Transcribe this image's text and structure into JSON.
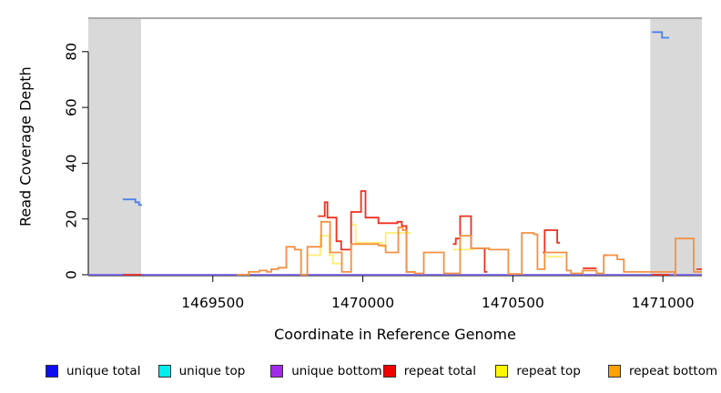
{
  "figure": {
    "x_title": "Coordinate in Reference Genome",
    "y_title": "Read Coverage Depth"
  },
  "chart_data": {
    "type": "line",
    "subtype": "step-coverage",
    "title": "",
    "xlabel": "Coordinate in Reference Genome",
    "ylabel": "Read Coverage Depth",
    "xlim": [
      1469085,
      1471130
    ],
    "ylim": [
      0,
      92
    ],
    "x_ticks": [
      1469500,
      1470000,
      1470500,
      1471000
    ],
    "y_ticks": [
      0,
      20,
      40,
      60,
      80
    ],
    "grid": false,
    "legend_position": "bottom",
    "colors": {
      "shade": "#d9d9d9",
      "axis": "#000000",
      "top_line": "#aaaaaa",
      "background": "#ffffff"
    },
    "shaded_regions": [
      {
        "x1": 1469085,
        "x2": 1469261
      },
      {
        "x1": 1470958,
        "x2": 1471130
      }
    ],
    "top_boundary_value": 92,
    "series": [
      {
        "name": "unique total",
        "legend_color": "#0d0df0",
        "line_color": "#4a80ee",
        "points": [
          [
            1469200,
            27
          ],
          [
            1469242,
            26
          ],
          [
            1469254,
            25
          ],
          [
            1469264,
            null
          ],
          [
            1470964,
            87
          ],
          [
            1470997,
            85
          ],
          [
            1471021,
            null
          ]
        ]
      },
      {
        "name": "unique top",
        "legend_color": "#00eded",
        "line_color": "#00eded",
        "points": []
      },
      {
        "name": "unique bottom",
        "legend_color": "#a12ce8",
        "line_color": "#7b68ee",
        "points": [
          [
            1469085,
            0
          ],
          [
            1471130,
            0
          ]
        ]
      },
      {
        "name": "repeat total",
        "legend_color": "#ee0000",
        "line_color": "#ef2f21",
        "points": [
          [
            1469200,
            0
          ],
          [
            1469264,
            null
          ],
          [
            1469850,
            21
          ],
          [
            1469873,
            26
          ],
          [
            1469882,
            20.5
          ],
          [
            1469912,
            12
          ],
          [
            1469928,
            9
          ],
          [
            1469961,
            22.5
          ],
          [
            1469994,
            30
          ],
          [
            1470009,
            20.5
          ],
          [
            1470052,
            18.5
          ],
          [
            1470115,
            19
          ],
          [
            1470130,
            17.5
          ],
          [
            1470145,
            1
          ],
          [
            1470170,
            null
          ],
          [
            1470300,
            11
          ],
          [
            1470310,
            13
          ],
          [
            1470324,
            21
          ],
          [
            1470361,
            9.5
          ],
          [
            1470406,
            1
          ],
          [
            1470415,
            null
          ],
          [
            1470600,
            8
          ],
          [
            1470606,
            16
          ],
          [
            1470648,
            11.5
          ],
          [
            1470657,
            null
          ],
          [
            1470733,
            2.3
          ],
          [
            1470779,
            null
          ],
          [
            1470803,
            7
          ],
          [
            1470815,
            null
          ],
          [
            1470964,
            0
          ],
          [
            1471021,
            null
          ],
          [
            1471112,
            2
          ],
          [
            1471130,
            2
          ]
        ]
      },
      {
        "name": "repeat top",
        "legend_color": "#fff700",
        "line_color": "#ffee77",
        "points": [
          [
            1469815,
            7
          ],
          [
            1469858,
            14
          ],
          [
            1469888,
            7
          ],
          [
            1469900,
            4
          ],
          [
            1469933,
            null
          ],
          [
            1469964,
            18
          ],
          [
            1469976,
            11.5
          ],
          [
            1470064,
            10
          ],
          [
            1470076,
            15
          ],
          [
            1470160,
            null
          ],
          [
            1470300,
            9
          ],
          [
            1470370,
            null
          ],
          [
            1470612,
            6.5
          ],
          [
            1470667,
            null
          ],
          [
            1470727,
            1.5
          ],
          [
            1470752,
            null
          ]
        ]
      },
      {
        "name": "repeat bottom",
        "legend_color": "#ffa200",
        "line_color": "#f49041",
        "points": [
          [
            1469580,
            0
          ],
          [
            1469620,
            1
          ],
          [
            1469655,
            1.5
          ],
          [
            1469680,
            1
          ],
          [
            1469695,
            2
          ],
          [
            1469718,
            2.5
          ],
          [
            1469745,
            10
          ],
          [
            1469773,
            9
          ],
          [
            1469794,
            0
          ],
          [
            1469815,
            10
          ],
          [
            1469861,
            19
          ],
          [
            1469891,
            8
          ],
          [
            1469930,
            1
          ],
          [
            1469961,
            11
          ],
          [
            1470052,
            10.5
          ],
          [
            1470076,
            8
          ],
          [
            1470118,
            17
          ],
          [
            1470133,
            16
          ],
          [
            1470145,
            1
          ],
          [
            1470173,
            0.5
          ],
          [
            1470203,
            8
          ],
          [
            1470270,
            0.5
          ],
          [
            1470324,
            14
          ],
          [
            1470361,
            9.5
          ],
          [
            1470421,
            9
          ],
          [
            1470485,
            0.3
          ],
          [
            1470530,
            15
          ],
          [
            1470570,
            14.5
          ],
          [
            1470582,
            2
          ],
          [
            1470606,
            8
          ],
          [
            1470648,
            8
          ],
          [
            1470679,
            1.5
          ],
          [
            1470694,
            0.5
          ],
          [
            1470733,
            1.5
          ],
          [
            1470779,
            0.5
          ],
          [
            1470803,
            7
          ],
          [
            1470848,
            5.5
          ],
          [
            1470870,
            1
          ],
          [
            1471040,
            0
          ],
          [
            1471042,
            13
          ],
          [
            1471103,
            1
          ],
          [
            1471130,
            1
          ]
        ]
      }
    ]
  }
}
